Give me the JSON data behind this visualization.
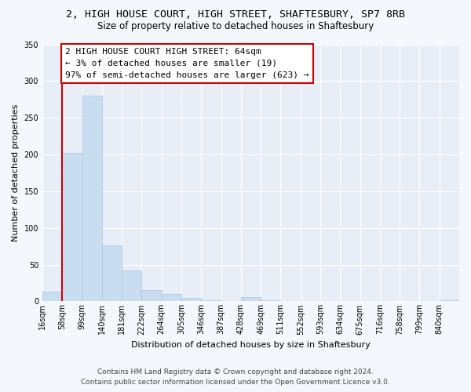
{
  "title": "2, HIGH HOUSE COURT, HIGH STREET, SHAFTESBURY, SP7 8RB",
  "subtitle": "Size of property relative to detached houses in Shaftesbury",
  "xlabel": "Distribution of detached houses by size in Shaftesbury",
  "ylabel": "Number of detached properties",
  "bin_labels": [
    "16sqm",
    "58sqm",
    "99sqm",
    "140sqm",
    "181sqm",
    "222sqm",
    "264sqm",
    "305sqm",
    "346sqm",
    "387sqm",
    "428sqm",
    "469sqm",
    "511sqm",
    "552sqm",
    "593sqm",
    "634sqm",
    "675sqm",
    "716sqm",
    "758sqm",
    "799sqm",
    "840sqm"
  ],
  "bar_heights": [
    13,
    202,
    280,
    76,
    42,
    15,
    10,
    5,
    2,
    0,
    6,
    1,
    0,
    0,
    0,
    0,
    0,
    0,
    0,
    0,
    2
  ],
  "bar_color": "#c9ddf0",
  "bar_edge_color": "#a8c4e0",
  "vline_x": 1,
  "vline_color": "#cc0000",
  "ylim": [
    0,
    350
  ],
  "yticks": [
    0,
    50,
    100,
    150,
    200,
    250,
    300,
    350
  ],
  "annotation_title": "2 HIGH HOUSE COURT HIGH STREET: 64sqm",
  "annotation_line1": "← 3% of detached houses are smaller (19)",
  "annotation_line2": "97% of semi-detached houses are larger (623) →",
  "annotation_box_color": "#ffffff",
  "annotation_border_color": "#cc0000",
  "footer_line1": "Contains HM Land Registry data © Crown copyright and database right 2024.",
  "footer_line2": "Contains public sector information licensed under the Open Government Licence v3.0.",
  "background_color": "#f4f7fc",
  "plot_bg_color": "#e8eef8",
  "grid_color": "#ffffff",
  "title_fontsize": 9.5,
  "subtitle_fontsize": 8.5,
  "axis_label_fontsize": 8,
  "tick_fontsize": 7,
  "annotation_fontsize": 8,
  "footer_fontsize": 6.5
}
